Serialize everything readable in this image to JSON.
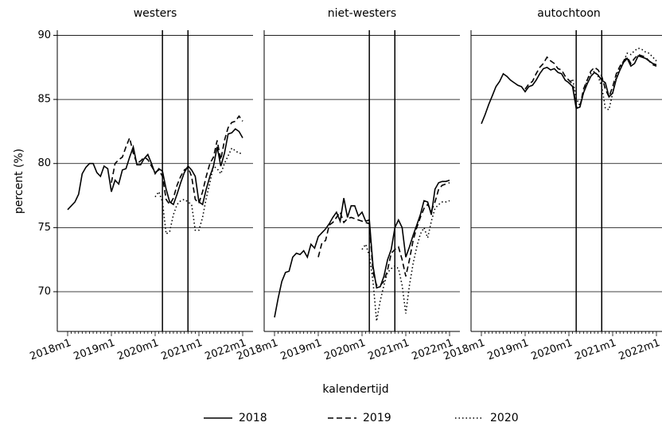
{
  "chart_data": [
    {
      "type": "line",
      "title": "westers",
      "ylabel": "percent (%)",
      "categories": [
        "2018m1",
        null,
        null,
        null,
        null,
        null,
        null,
        null,
        null,
        null,
        null,
        null,
        "2019m1",
        null,
        null,
        null,
        null,
        null,
        null,
        null,
        null,
        null,
        null,
        null,
        "2020m1",
        null,
        null,
        null,
        null,
        null,
        null,
        null,
        null,
        null,
        null,
        null,
        "2021m1",
        null,
        null,
        null,
        null,
        null,
        null,
        null,
        null,
        null,
        null,
        null,
        "2022m1"
      ],
      "ylim": [
        66.9,
        90.4
      ],
      "yticks": [
        70,
        75,
        80,
        85,
        90
      ],
      "grid": true,
      "vlines": [
        26,
        33
      ],
      "series": [
        {
          "name": "2018",
          "color": "#000000",
          "dash": "solid",
          "values": [
            76.4,
            76.7,
            77.0,
            77.6,
            79.2,
            79.7,
            80.0,
            80.0,
            79.3,
            79.0,
            79.8,
            79.6,
            77.8,
            78.7,
            78.4,
            79.5,
            79.6,
            80.5,
            81.3,
            79.9,
            79.9,
            80.4,
            80.7,
            80.0,
            79.2,
            79.6,
            79.4,
            78.0,
            77.0,
            76.8,
            77.6,
            78.5,
            79.3,
            79.8,
            79.5,
            79.0,
            77.0,
            76.8,
            78.0,
            79.0,
            79.8,
            81.3,
            79.8,
            80.8,
            82.3,
            82.4,
            82.7,
            82.5,
            82.0
          ]
        },
        {
          "name": "2019",
          "color": "#000000",
          "dash": "dashed",
          "values": [
            null,
            null,
            null,
            null,
            null,
            null,
            null,
            null,
            null,
            null,
            null,
            null,
            78.5,
            80.0,
            80.3,
            80.5,
            81.3,
            82.0,
            80.8,
            80.0,
            80.2,
            80.5,
            80.3,
            79.8,
            79.3,
            79.5,
            79.0,
            77.2,
            76.8,
            77.3,
            78.3,
            79.0,
            79.5,
            79.7,
            79.0,
            77.2,
            76.9,
            77.8,
            79.0,
            80.0,
            80.5,
            81.8,
            80.3,
            81.8,
            82.8,
            83.2,
            83.3,
            83.7,
            83.3
          ]
        },
        {
          "name": "2020",
          "color": "#000000",
          "dash": "dotted",
          "values": [
            null,
            null,
            null,
            null,
            null,
            null,
            null,
            null,
            null,
            null,
            null,
            null,
            null,
            null,
            null,
            null,
            null,
            null,
            null,
            null,
            null,
            null,
            null,
            null,
            77.4,
            77.8,
            77.0,
            74.5,
            74.7,
            76.0,
            76.8,
            77.1,
            77.2,
            77.0,
            76.8,
            74.8,
            74.8,
            75.8,
            77.3,
            78.5,
            79.8,
            79.6,
            79.2,
            80.0,
            80.6,
            81.2,
            81.0,
            80.8,
            80.8
          ]
        }
      ]
    },
    {
      "type": "line",
      "title": "niet-westers",
      "categories": [
        "2018m1",
        null,
        null,
        null,
        null,
        null,
        null,
        null,
        null,
        null,
        null,
        null,
        "2019m1",
        null,
        null,
        null,
        null,
        null,
        null,
        null,
        null,
        null,
        null,
        null,
        "2020m1",
        null,
        null,
        null,
        null,
        null,
        null,
        null,
        null,
        null,
        null,
        null,
        "2021m1",
        null,
        null,
        null,
        null,
        null,
        null,
        null,
        null,
        null,
        null,
        null,
        "2022m1"
      ],
      "ylim": [
        66.9,
        90.4
      ],
      "yticks": [
        70,
        75,
        80,
        85,
        90
      ],
      "grid": true,
      "vlines": [
        26,
        33
      ],
      "series": [
        {
          "name": "2018",
          "color": "#000000",
          "dash": "solid",
          "values": [
            68.0,
            69.5,
            70.8,
            71.5,
            71.6,
            72.7,
            73.0,
            72.9,
            73.2,
            72.7,
            73.7,
            73.4,
            74.3,
            74.6,
            74.9,
            75.3,
            75.8,
            76.2,
            75.5,
            77.3,
            75.8,
            76.7,
            76.7,
            75.9,
            76.2,
            75.5,
            75.6,
            72.0,
            70.3,
            70.4,
            71.2,
            72.5,
            73.3,
            75.0,
            75.6,
            75.0,
            72.7,
            73.5,
            74.4,
            75.2,
            76.0,
            77.1,
            77.0,
            76.0,
            78.0,
            78.5,
            78.6,
            78.6,
            78.7
          ]
        },
        {
          "name": "2019",
          "color": "#000000",
          "dash": "dashed",
          "values": [
            null,
            null,
            null,
            null,
            null,
            null,
            null,
            null,
            null,
            null,
            null,
            null,
            72.7,
            73.8,
            74.0,
            75.2,
            75.4,
            75.8,
            76.2,
            75.4,
            75.7,
            75.8,
            75.7,
            75.6,
            75.5,
            75.4,
            75.3,
            71.5,
            70.5,
            70.5,
            70.8,
            71.7,
            73.0,
            73.3,
            73.5,
            72.5,
            71.2,
            72.5,
            74.0,
            75.0,
            75.8,
            76.5,
            76.8,
            76.3,
            77.0,
            78.0,
            78.3,
            78.4,
            78.5
          ]
        },
        {
          "name": "2020",
          "color": "#000000",
          "dash": "dotted",
          "values": [
            null,
            null,
            null,
            null,
            null,
            null,
            null,
            null,
            null,
            null,
            null,
            null,
            null,
            null,
            null,
            null,
            null,
            null,
            null,
            null,
            null,
            null,
            null,
            null,
            73.3,
            73.7,
            72.8,
            70.8,
            67.7,
            69.3,
            70.5,
            71.5,
            71.8,
            72.0,
            71.8,
            70.5,
            68.3,
            70.5,
            72.2,
            73.5,
            74.5,
            75.0,
            74.2,
            75.5,
            76.5,
            76.8,
            77.0,
            77.0,
            77.1
          ]
        }
      ]
    },
    {
      "type": "line",
      "title": "autochtoon",
      "categories": [
        "2018m1",
        null,
        null,
        null,
        null,
        null,
        null,
        null,
        null,
        null,
        null,
        null,
        "2019m1",
        null,
        null,
        null,
        null,
        null,
        null,
        null,
        null,
        null,
        null,
        null,
        "2020m1",
        null,
        null,
        null,
        null,
        null,
        null,
        null,
        null,
        null,
        null,
        null,
        "2021m1",
        null,
        null,
        null,
        null,
        null,
        null,
        null,
        null,
        null,
        null,
        null,
        "2022m1"
      ],
      "ylim": [
        66.9,
        90.4
      ],
      "yticks": [
        70,
        75,
        80,
        85,
        90
      ],
      "grid": true,
      "vlines": [
        26,
        33
      ],
      "series": [
        {
          "name": "2018",
          "color": "#000000",
          "dash": "solid",
          "values": [
            83.1,
            83.8,
            84.6,
            85.3,
            86.0,
            86.4,
            87.0,
            86.8,
            86.5,
            86.3,
            86.1,
            86.0,
            85.6,
            86.0,
            86.1,
            86.5,
            87.0,
            87.4,
            87.5,
            87.3,
            87.4,
            87.1,
            87.0,
            86.5,
            86.3,
            86.0,
            84.3,
            84.4,
            85.5,
            86.2,
            86.8,
            87.1,
            86.9,
            86.5,
            86.3,
            85.2,
            85.5,
            86.6,
            87.3,
            87.9,
            88.2,
            87.6,
            87.8,
            88.4,
            88.3,
            88.2,
            88.0,
            87.8,
            87.7
          ]
        },
        {
          "name": "2019",
          "color": "#000000",
          "dash": "dashed",
          "values": [
            null,
            null,
            null,
            null,
            null,
            null,
            null,
            null,
            null,
            null,
            null,
            null,
            85.8,
            86.2,
            86.4,
            87.0,
            87.5,
            87.8,
            88.3,
            88.0,
            87.8,
            87.4,
            87.3,
            86.8,
            86.5,
            86.2,
            84.4,
            84.4,
            85.8,
            86.5,
            87.2,
            87.5,
            87.3,
            86.8,
            85.8,
            85.2,
            86.0,
            87.0,
            87.6,
            88.0,
            88.3,
            87.8,
            88.2,
            88.5,
            88.4,
            88.3,
            88.0,
            87.7,
            87.6
          ]
        },
        {
          "name": "2020",
          "color": "#000000",
          "dash": "dotted",
          "values": [
            null,
            null,
            null,
            null,
            null,
            null,
            null,
            null,
            null,
            null,
            null,
            null,
            null,
            null,
            null,
            null,
            null,
            null,
            null,
            null,
            null,
            null,
            null,
            null,
            86.2,
            86.6,
            85.1,
            84.5,
            85.5,
            86.5,
            87.0,
            87.2,
            86.8,
            86.0,
            84.3,
            84.2,
            85.5,
            86.8,
            87.5,
            88.0,
            88.6,
            88.5,
            88.8,
            89.0,
            88.9,
            88.7,
            88.6,
            88.3,
            88.0
          ]
        }
      ]
    }
  ],
  "xlabel": "kalendertijd"
}
